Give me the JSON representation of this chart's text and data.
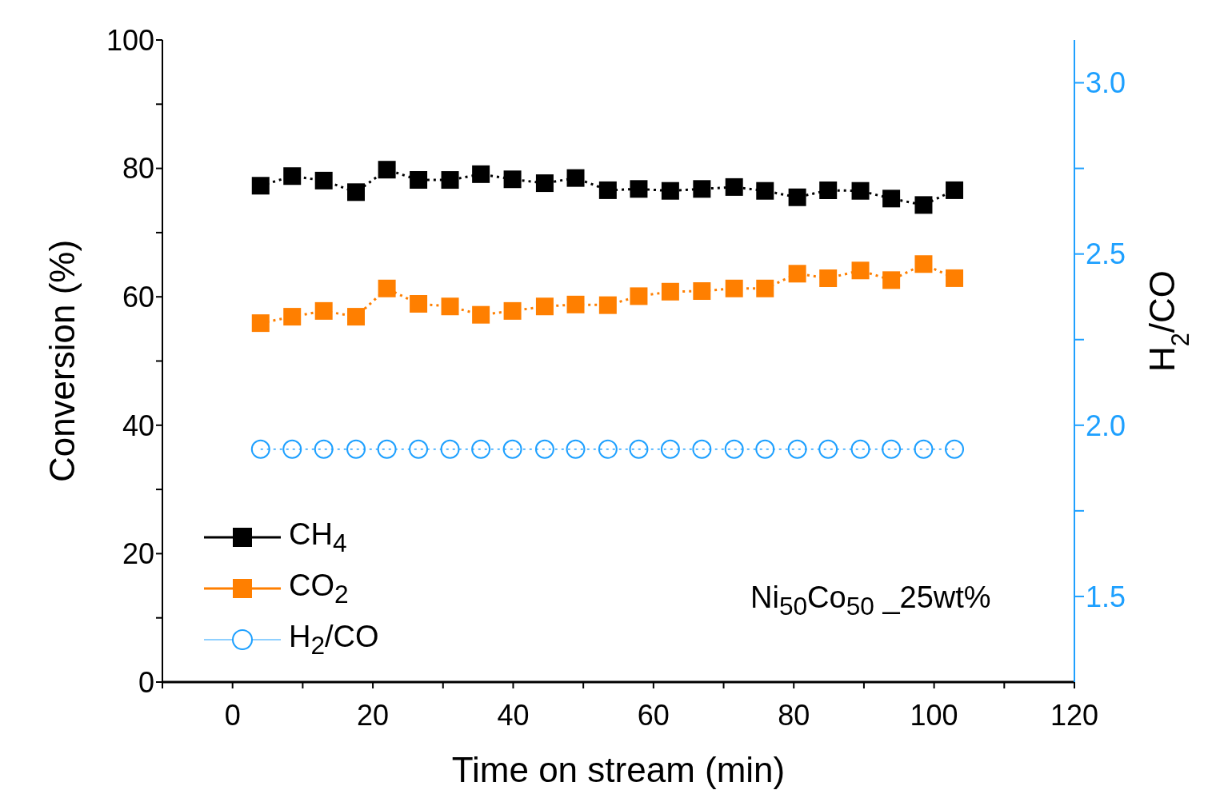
{
  "chart_data": {
    "type": "line",
    "xlabel": "Time on stream (min)",
    "ylabel": "Conversion (%)",
    "y2label": "H$_{2}$/CO",
    "x": [
      4.0,
      8.5,
      13.0,
      17.6,
      22.0,
      26.5,
      31.0,
      35.4,
      39.9,
      44.5,
      48.9,
      53.5,
      57.9,
      62.4,
      66.9,
      71.5,
      75.9,
      80.5,
      84.9,
      89.5,
      93.9,
      98.5,
      102.9
    ],
    "series": [
      {
        "name": "CH$_{4}$",
        "color": "#000000",
        "marker": "square",
        "values": [
          77.3,
          78.8,
          78.1,
          76.3,
          79.8,
          78.2,
          78.2,
          79.1,
          78.3,
          77.7,
          78.5,
          76.6,
          76.8,
          76.5,
          76.8,
          77.1,
          76.5,
          75.5,
          76.6,
          76.5,
          75.3,
          74.3,
          76.6
        ]
      },
      {
        "name": "CO$_{2}$",
        "color": "#ff7f00",
        "marker": "square",
        "values": [
          55.9,
          56.9,
          57.8,
          56.9,
          61.3,
          58.9,
          58.5,
          57.2,
          57.8,
          58.5,
          58.8,
          58.7,
          60.1,
          60.8,
          60.9,
          61.3,
          61.3,
          63.6,
          62.9,
          64.1,
          62.6,
          65.1,
          62.9
        ]
      },
      {
        "name": "H$_{2}$/CO",
        "color": "#1ea0ff",
        "marker": "circle",
        "axis": "y2",
        "values": [
          1.93,
          1.93,
          1.93,
          1.93,
          1.93,
          1.93,
          1.93,
          1.93,
          1.93,
          1.93,
          1.93,
          1.93,
          1.93,
          1.93,
          1.93,
          1.93,
          1.93,
          1.93,
          1.93,
          1.93,
          1.93,
          1.93,
          1.93
        ]
      }
    ],
    "xlim": [
      -10,
      120
    ],
    "xticks": [
      {
        "value": -10,
        "label": null
      },
      0,
      {
        "value": 10,
        "label": null
      },
      20,
      {
        "value": 30,
        "label": null
      },
      40,
      {
        "value": 50,
        "label": null
      },
      60,
      {
        "value": 70,
        "label": null
      },
      80,
      {
        "value": 90,
        "label": null
      },
      100,
      {
        "value": 110,
        "label": null
      },
      120
    ],
    "ylim": [
      0,
      100
    ],
    "yticks": [
      0,
      {
        "value": 10,
        "label": null
      },
      20,
      {
        "value": 30,
        "label": null
      },
      40,
      {
        "value": 50,
        "label": null
      },
      60,
      {
        "value": 70,
        "label": null
      },
      80,
      {
        "value": 90,
        "label": null
      },
      100
    ],
    "y2lim": [
      1.25,
      3.125
    ],
    "y2ticks": [
      {
        "value": 1.5,
        "label": "1.5"
      },
      {
        "value": 1.75,
        "label": null
      },
      {
        "value": 2.0,
        "label": "2.0"
      },
      {
        "value": 2.25,
        "label": null
      },
      {
        "value": 2.5,
        "label": "2.5"
      },
      {
        "value": 2.75,
        "label": null
      },
      {
        "value": 3.0,
        "label": "3.0"
      }
    ],
    "line_style": "dotted",
    "grid": false,
    "legend": "bottom left",
    "annotations": [
      "Ni$_{50}$Co$_{50}$ _25wt%"
    ]
  }
}
